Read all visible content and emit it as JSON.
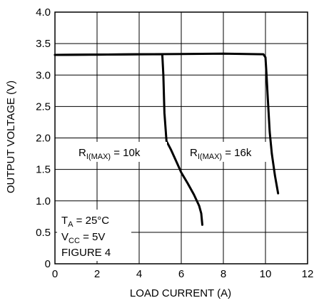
{
  "chart_data": {
    "type": "line",
    "xlabel": "LOAD CURRENT (A)",
    "ylabel": "OUTPUT VOLTAGE (V)",
    "xlim": [
      0,
      12
    ],
    "ylim": [
      0,
      4.0
    ],
    "x_ticks": [
      "0",
      "2",
      "4",
      "6",
      "8",
      "10",
      "12"
    ],
    "y_ticks": [
      "0",
      "0.5",
      "1.0",
      "1.5",
      "2.0",
      "2.5",
      "3.0",
      "3.5",
      "4.0"
    ],
    "grid": true,
    "series": [
      {
        "name": "RI(MAX) = 10k",
        "x": [
          0,
          2,
          4,
          5.1,
          5.15,
          5.2,
          5.3,
          5.5,
          5.8,
          6.0,
          6.3,
          6.6,
          6.85,
          6.95,
          7.0
        ],
        "y": [
          3.32,
          3.325,
          3.33,
          3.33,
          3.0,
          2.4,
          1.95,
          1.82,
          1.6,
          1.45,
          1.28,
          1.1,
          0.92,
          0.8,
          0.62
        ]
      },
      {
        "name": "RI(MAX) = 16k",
        "x": [
          0,
          2,
          4,
          6,
          8,
          9.9,
          10.0,
          10.05,
          10.1,
          10.15,
          10.2,
          10.3,
          10.45,
          10.6
        ],
        "y": [
          3.32,
          3.325,
          3.33,
          3.335,
          3.34,
          3.33,
          3.28,
          3.0,
          2.7,
          2.4,
          2.1,
          1.75,
          1.4,
          1.12
        ]
      }
    ],
    "labels": {
      "r10k": {
        "main": "R",
        "sub": "I(MAX)",
        "rest": " = 10k"
      },
      "r16k": {
        "main": "R",
        "sub": "I(MAX)",
        "rest": " = 16k"
      }
    },
    "conditions": {
      "ta": {
        "main": "T",
        "sub": "A",
        "rest": " = 25°C"
      },
      "vcc": {
        "main": "V",
        "sub": "CC",
        "rest": " = 5V"
      },
      "figure": "FIGURE 4"
    }
  }
}
